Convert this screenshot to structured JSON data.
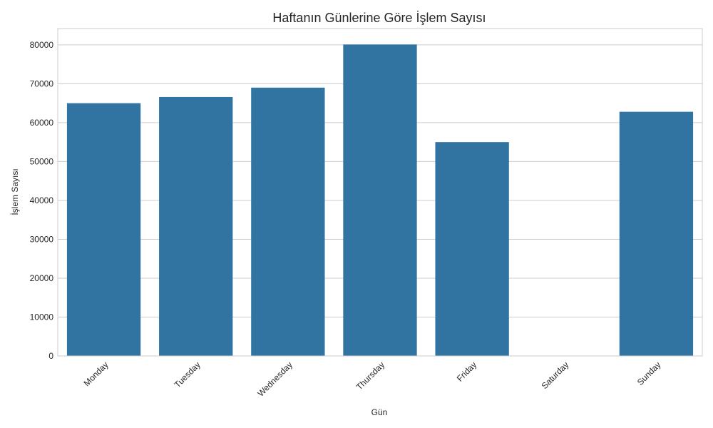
{
  "chart_data": {
    "type": "bar",
    "title": "Haftanın Günlerine Göre İşlem Sayısı",
    "xlabel": "Gün",
    "ylabel": "İşlem Sayısı",
    "categories": [
      "Monday",
      "Tuesday",
      "Wednesday",
      "Thursday",
      "Friday",
      "Saturday",
      "Sunday"
    ],
    "values": [
      65000,
      66600,
      69000,
      80100,
      55000,
      0,
      62800
    ],
    "yticks": [
      0,
      10000,
      20000,
      30000,
      40000,
      50000,
      60000,
      70000,
      80000
    ],
    "ylim": [
      0,
      84200
    ],
    "grid": true,
    "bar_color": "#3274a1",
    "grid_color": "#cccccc",
    "frame_color": "#cccccc"
  }
}
